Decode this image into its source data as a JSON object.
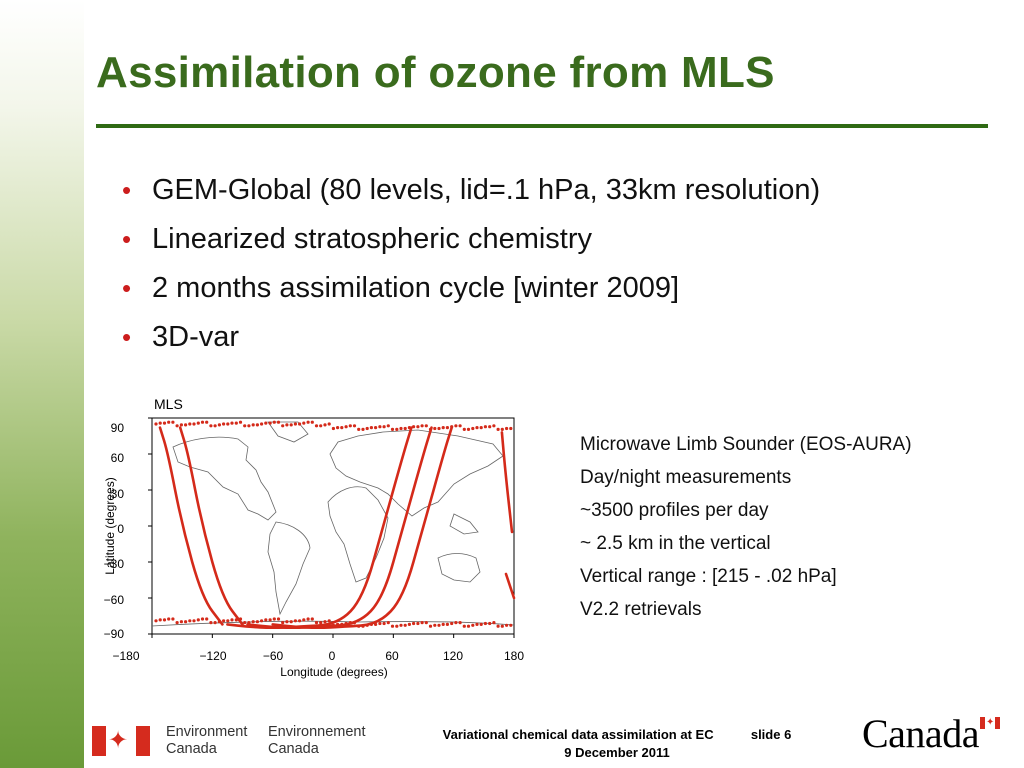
{
  "slide": {
    "title": "Assimilation of ozone from MLS",
    "bullets": [
      "GEM-Global (80 levels, lid=.1 hPa, 33km resolution)",
      "Linearized stratospheric chemistry",
      "2 months assimilation cycle [winter 2009]",
      "3D-var"
    ],
    "bullet_color": "#cc1d1d",
    "title_color": "#3a6b1d"
  },
  "figure": {
    "panel_label": "MLS",
    "ylabel": "Latitude (degrees)",
    "xlabel": "Longitude (degrees)",
    "xticks": [
      "−180",
      "−120",
      "−60",
      "0",
      "60",
      "120",
      "180"
    ],
    "yticks": [
      "90",
      "60",
      "30",
      "0",
      "−30",
      "−60",
      "−90"
    ],
    "track_color": "#d42a1a"
  },
  "chart_data": {
    "type": "line",
    "title": "MLS",
    "xlabel": "Longitude (degrees)",
    "ylabel": "Latitude (degrees)",
    "xlim": [
      -180,
      180
    ],
    "ylim": [
      -90,
      90
    ],
    "xticks": [
      -180,
      -120,
      -60,
      0,
      60,
      120,
      180
    ],
    "yticks": [
      -90,
      -60,
      -30,
      0,
      30,
      60,
      90
    ],
    "series": [
      {
        "x": [
          -172,
          -164,
          -150,
          -130,
          -110
        ],
        "y": [
          82,
          60,
          0,
          -60,
          -82
        ]
      },
      {
        "x": [
          -152,
          -144,
          -130,
          -110,
          -90
        ],
        "y": [
          82,
          60,
          0,
          -60,
          -82
        ]
      },
      {
        "x": [
          -105,
          -85,
          -60,
          -35,
          5,
          30,
          50,
          70,
          78
        ],
        "y": [
          -82,
          -84,
          -85,
          -84,
          -82,
          -60,
          0,
          60,
          82
        ]
      },
      {
        "x": [
          -85,
          -65,
          -40,
          -15,
          25,
          50,
          70,
          90,
          98
        ],
        "y": [
          -82,
          -84,
          -85,
          -84,
          -82,
          -60,
          0,
          60,
          82
        ]
      },
      {
        "x": [
          -60,
          -40,
          -15,
          10,
          45,
          70,
          90,
          110,
          118
        ],
        "y": [
          -82,
          -84,
          -85,
          -84,
          -82,
          -60,
          0,
          60,
          82
        ]
      },
      {
        "x": [
          168,
          172,
          178
        ],
        "y": [
          78,
          40,
          -5
        ]
      },
      {
        "x": [
          172,
          180
        ],
        "y": [
          -40,
          -60
        ]
      }
    ],
    "dotted_band_latitudes": [
      82,
      -82
    ]
  },
  "info_list": [
    "Microwave Limb Sounder (EOS-AURA)",
    "Day/night measurements",
    "~3500 profiles per day",
    "~ 2.5 km in the vertical",
    "Vertical range : [215 - .02 hPa]",
    "V2.2 retrievals"
  ],
  "footer": {
    "dept_en": [
      "Environment",
      "Canada"
    ],
    "dept_fr": [
      "Environnement",
      "Canada"
    ],
    "center_line1": "Variational chemical data assimilation at EC",
    "slide_label": "slide",
    "slide_number": "6",
    "center_line2": "9 December 2011",
    "wordmark": "Canada",
    "flag_red": "#d52b1e"
  }
}
